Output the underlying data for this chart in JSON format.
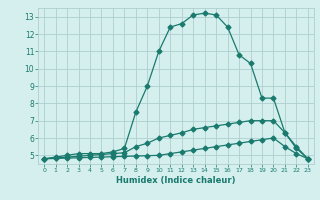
{
  "line1_x": [
    0,
    1,
    2,
    3,
    4,
    5,
    6,
    7,
    8,
    9,
    10,
    11,
    12,
    13,
    14,
    15,
    16,
    17,
    18,
    19,
    20,
    21,
    22,
    23
  ],
  "line1_y": [
    4.8,
    4.9,
    5.0,
    5.1,
    5.1,
    5.1,
    5.2,
    5.4,
    7.5,
    9.0,
    11.0,
    12.4,
    12.6,
    13.1,
    13.2,
    13.1,
    12.4,
    10.8,
    10.3,
    8.3,
    8.3,
    6.3,
    5.4,
    4.8
  ],
  "line2_x": [
    0,
    1,
    2,
    3,
    4,
    5,
    6,
    7,
    8,
    9,
    10,
    11,
    12,
    13,
    14,
    15,
    16,
    17,
    18,
    19,
    20,
    21,
    22,
    23
  ],
  "line2_y": [
    4.8,
    4.85,
    4.9,
    4.95,
    5.0,
    5.05,
    5.1,
    5.15,
    5.5,
    5.7,
    6.0,
    6.15,
    6.3,
    6.5,
    6.6,
    6.7,
    6.8,
    6.9,
    7.0,
    7.0,
    7.0,
    6.3,
    5.5,
    4.8
  ],
  "line3_x": [
    0,
    1,
    2,
    3,
    4,
    5,
    6,
    7,
    8,
    9,
    10,
    11,
    12,
    13,
    14,
    15,
    16,
    17,
    18,
    19,
    20,
    21,
    22,
    23
  ],
  "line3_y": [
    4.8,
    4.82,
    4.84,
    4.86,
    4.88,
    4.9,
    4.92,
    4.94,
    4.96,
    4.98,
    5.0,
    5.1,
    5.2,
    5.3,
    5.4,
    5.5,
    5.6,
    5.7,
    5.8,
    5.9,
    6.0,
    5.5,
    5.1,
    4.8
  ],
  "line_color": "#1a7a6e",
  "bg_color": "#d4efee",
  "grid_color": "#aecfce",
  "xlabel": "Humidex (Indice chaleur)",
  "xlim": [
    -0.5,
    23.5
  ],
  "ylim": [
    4.5,
    13.5
  ],
  "xticks": [
    0,
    1,
    2,
    3,
    4,
    5,
    6,
    7,
    8,
    9,
    10,
    11,
    12,
    13,
    14,
    15,
    16,
    17,
    18,
    19,
    20,
    21,
    22,
    23
  ],
  "yticks": [
    5,
    6,
    7,
    8,
    9,
    10,
    11,
    12,
    13
  ],
  "marker": "D",
  "markersize": 2.5,
  "linewidth": 0.9
}
